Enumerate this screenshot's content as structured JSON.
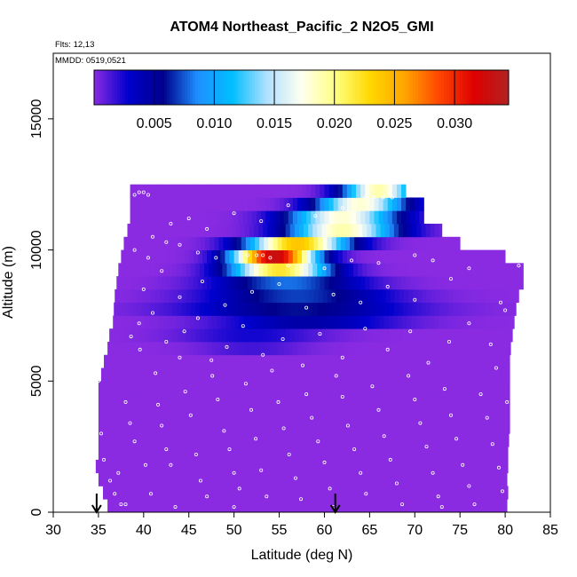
{
  "chart_data": {
    "type": "heatmap",
    "title": "ATOM4 Northeast_Pacific_2 N2O5_GMI",
    "flights_note": "Flts: 12,13",
    "dates_note": "MMDD: 0519,0521",
    "xlabel": "Latitude (deg N)",
    "ylabel": "Altitude (m)",
    "xlim": [
      30,
      85
    ],
    "ylim": [
      0,
      17500
    ],
    "x_ticks": [
      "30",
      "35",
      "40",
      "45",
      "50",
      "55",
      "60",
      "65",
      "70",
      "75",
      "80",
      "85"
    ],
    "y_ticks": [
      "0",
      "5000",
      "10000",
      "15000"
    ],
    "colorbar": {
      "range": [
        0,
        0.0345
      ],
      "ticks": [
        "0.005",
        "0.010",
        "0.015",
        "0.020",
        "0.025",
        "0.030"
      ],
      "colors": [
        "#8a2be2",
        "#0000cd",
        "#00008b",
        "#1e90ff",
        "#00bfff",
        "#b0e0ff",
        "#fffff0",
        "#ffff80",
        "#ffd700",
        "#ffa500",
        "#ff4500",
        "#dd0000",
        "#b22222"
      ]
    },
    "arrows_lat": [
      34.8,
      61.2
    ],
    "layers": [
      {
        "alt": 250,
        "lat": [
          36.0,
          80.2
        ],
        "peak": 0.0,
        "peak_lat": 0,
        "peak_w": 1
      },
      {
        "alt": 750,
        "lat": [
          35.5,
          80.3
        ],
        "peak": 0.0,
        "peak_lat": 0,
        "peak_w": 1
      },
      {
        "alt": 1250,
        "lat": [
          35.0,
          80.2
        ],
        "peak": 0.0,
        "peak_lat": 0,
        "peak_w": 1
      },
      {
        "alt": 1750,
        "lat": [
          34.7,
          80.3
        ],
        "peak": 0.0,
        "peak_lat": 0,
        "peak_w": 1
      },
      {
        "alt": 2250,
        "lat": [
          35.0,
          80.3
        ],
        "peak": 0.0,
        "peak_lat": 0,
        "peak_w": 1
      },
      {
        "alt": 2750,
        "lat": [
          35.0,
          80.4
        ],
        "peak": 0.0,
        "peak_lat": 0,
        "peak_w": 1
      },
      {
        "alt": 3250,
        "lat": [
          35.0,
          80.5
        ],
        "peak": 0.0,
        "peak_lat": 0,
        "peak_w": 1
      },
      {
        "alt": 3750,
        "lat": [
          35.0,
          80.5
        ],
        "peak": 0.0,
        "peak_lat": 0,
        "peak_w": 1
      },
      {
        "alt": 4250,
        "lat": [
          35.0,
          80.5
        ],
        "peak": 0.0,
        "peak_lat": 0,
        "peak_w": 1
      },
      {
        "alt": 4750,
        "lat": [
          35.0,
          80.5
        ],
        "peak": 0.0,
        "peak_lat": 0,
        "peak_w": 1
      },
      {
        "alt": 5250,
        "lat": [
          35.3,
          80.5
        ],
        "peak": 0.0,
        "peak_lat": 0,
        "peak_w": 1
      },
      {
        "alt": 5750,
        "lat": [
          35.6,
          80.5
        ],
        "peak": 0.0,
        "peak_lat": 0,
        "peak_w": 1
      },
      {
        "alt": 6250,
        "lat": [
          36.0,
          80.6
        ],
        "peak": 0.0015,
        "peak_lat": 52,
        "peak_w": 6
      },
      {
        "alt": 6750,
        "lat": [
          36.2,
          80.8
        ],
        "peak": 0.0025,
        "peak_lat": 52,
        "peak_w": 8
      },
      {
        "alt": 7250,
        "lat": [
          36.6,
          81.0
        ],
        "peak": 0.0045,
        "peak_lat": 58,
        "peak_w": 10
      },
      {
        "alt": 7750,
        "lat": [
          36.7,
          81.2
        ],
        "peak": 0.006,
        "peak_lat": 57,
        "peak_w": 12
      },
      {
        "alt": 8250,
        "lat": [
          36.8,
          81.5
        ],
        "peak": 0.007,
        "peak_lat": 57,
        "peak_w": 10
      },
      {
        "alt": 8750,
        "lat": [
          37.0,
          82.0
        ],
        "peak": 0.008,
        "peak_lat": 56,
        "peak_w": 8
      },
      {
        "alt": 9250,
        "lat": [
          37.2,
          82.0
        ],
        "peak": 0.022,
        "peak_lat": 55,
        "peak_w": 5.5
      },
      {
        "alt": 9750,
        "lat": [
          37.5,
          80.0
        ],
        "peak": 0.033,
        "peak_lat": 54.5,
        "peak_w": 4.5
      },
      {
        "alt": 10250,
        "lat": [
          37.8,
          75.0
        ],
        "peak": 0.024,
        "peak_lat": 57,
        "peak_w": 5.5
      },
      {
        "alt": 10750,
        "lat": [
          38.2,
          73.0
        ],
        "peak": 0.019,
        "peak_lat": 62,
        "peak_w": 6
      },
      {
        "alt": 11250,
        "lat": [
          38.5,
          71.0
        ],
        "peak": 0.018,
        "peak_lat": 62,
        "peak_w": 6
      },
      {
        "alt": 11750,
        "lat": [
          38.5,
          71.0
        ],
        "peak": 0.018,
        "peak_lat": 64,
        "peak_w": 5
      },
      {
        "alt": 12250,
        "lat": [
          38.5,
          69.0
        ],
        "peak": 0.019,
        "peak_lat": 66,
        "peak_w": 4
      }
    ],
    "points": [
      [
        35.0,
        5000
      ],
      [
        35.3,
        3000
      ],
      [
        35.6,
        2000
      ],
      [
        36.3,
        1200
      ],
      [
        36.8,
        700
      ],
      [
        37.2,
        1500
      ],
      [
        37.5,
        300
      ],
      [
        38.0,
        4200
      ],
      [
        38.5,
        3400
      ],
      [
        39.0,
        2700
      ],
      [
        39.6,
        6200
      ],
      [
        40.2,
        1800
      ],
      [
        40.8,
        700
      ],
      [
        41.3,
        5300
      ],
      [
        41.6,
        4100
      ],
      [
        42.0,
        3300
      ],
      [
        42.5,
        2400
      ],
      [
        43.0,
        1800
      ],
      [
        43.5,
        200
      ],
      [
        44.0,
        5900
      ],
      [
        44.6,
        4600
      ],
      [
        45.2,
        3700
      ],
      [
        45.8,
        2200
      ],
      [
        46.3,
        1200
      ],
      [
        47.0,
        600
      ],
      [
        47.6,
        5200
      ],
      [
        48.2,
        4300
      ],
      [
        48.9,
        3100
      ],
      [
        49.5,
        2400
      ],
      [
        50.0,
        1500
      ],
      [
        50.6,
        900
      ],
      [
        51.3,
        4900
      ],
      [
        51.9,
        3900
      ],
      [
        52.4,
        2800
      ],
      [
        53.0,
        1600
      ],
      [
        53.6,
        600
      ],
      [
        54.2,
        5400
      ],
      [
        54.9,
        4200
      ],
      [
        55.5,
        3200
      ],
      [
        56.1,
        2200
      ],
      [
        56.8,
        1300
      ],
      [
        57.4,
        500
      ],
      [
        58.0,
        4500
      ],
      [
        58.6,
        3600
      ],
      [
        59.3,
        2700
      ],
      [
        60.0,
        1900
      ],
      [
        60.6,
        900
      ],
      [
        61.3,
        5200
      ],
      [
        62.0,
        4400
      ],
      [
        62.6,
        3300
      ],
      [
        63.3,
        2400
      ],
      [
        64.0,
        1500
      ],
      [
        64.6,
        700
      ],
      [
        65.3,
        4800
      ],
      [
        66.0,
        3900
      ],
      [
        66.6,
        2900
      ],
      [
        67.3,
        2000
      ],
      [
        68.0,
        1100
      ],
      [
        68.6,
        300
      ],
      [
        69.3,
        5200
      ],
      [
        70.0,
        4300
      ],
      [
        70.6,
        3400
      ],
      [
        71.3,
        2500
      ],
      [
        72.0,
        1500
      ],
      [
        72.6,
        600
      ],
      [
        73.3,
        4700
      ],
      [
        74.0,
        3700
      ],
      [
        74.6,
        2800
      ],
      [
        75.3,
        1800
      ],
      [
        76.0,
        1000
      ],
      [
        76.6,
        300
      ],
      [
        77.3,
        4500
      ],
      [
        78.0,
        3600
      ],
      [
        78.6,
        2600
      ],
      [
        79.3,
        1700
      ],
      [
        79.7,
        800
      ],
      [
        73.0,
        200
      ],
      [
        61.0,
        200
      ],
      [
        50.0,
        200
      ],
      [
        38.0,
        300
      ],
      [
        38.6,
        6700
      ],
      [
        39.5,
        7200
      ],
      [
        41.0,
        7600
      ],
      [
        42.5,
        6500
      ],
      [
        44.5,
        6900
      ],
      [
        46.0,
        7400
      ],
      [
        47.5,
        5800
      ],
      [
        49.2,
        6300
      ],
      [
        51.0,
        7100
      ],
      [
        53.2,
        6000
      ],
      [
        55.4,
        6600
      ],
      [
        57.6,
        5600
      ],
      [
        59.5,
        6800
      ],
      [
        62.0,
        5900
      ],
      [
        64.5,
        7000
      ],
      [
        67.0,
        6200
      ],
      [
        69.5,
        6900
      ],
      [
        71.5,
        5700
      ],
      [
        73.8,
        6500
      ],
      [
        76.0,
        7200
      ],
      [
        78.4,
        6400
      ],
      [
        80.0,
        7700
      ],
      [
        79.0,
        5500
      ],
      [
        80.2,
        4200
      ],
      [
        40.0,
        8500
      ],
      [
        42.0,
        9200
      ],
      [
        44.0,
        8200
      ],
      [
        46.5,
        8800
      ],
      [
        49.0,
        7900
      ],
      [
        52.0,
        8400
      ],
      [
        55.0,
        8700
      ],
      [
        58.0,
        7800
      ],
      [
        61.0,
        8300
      ],
      [
        64.0,
        8000
      ],
      [
        67.0,
        8600
      ],
      [
        70.0,
        8100
      ],
      [
        74.0,
        8900
      ],
      [
        76.0,
        9300
      ],
      [
        79.5,
        8000
      ],
      [
        81.5,
        9400
      ],
      [
        39.0,
        10000
      ],
      [
        40.5,
        9700
      ],
      [
        42.5,
        10300
      ],
      [
        44.0,
        10200
      ],
      [
        46.0,
        9900
      ],
      [
        48.0,
        9700
      ],
      [
        51.5,
        9800
      ],
      [
        52.5,
        9800
      ],
      [
        53.2,
        9800
      ],
      [
        54.0,
        9700
      ],
      [
        56.0,
        9400
      ],
      [
        60.0,
        9300
      ],
      [
        63.0,
        9600
      ],
      [
        66.0,
        9500
      ],
      [
        70.0,
        9800
      ],
      [
        72.0,
        9600
      ],
      [
        41.0,
        10500
      ],
      [
        43.0,
        11000
      ],
      [
        45.0,
        11200
      ],
      [
        47.0,
        10800
      ],
      [
        50.0,
        11400
      ],
      [
        53.0,
        11100
      ],
      [
        56.0,
        11700
      ],
      [
        59.0,
        11300
      ],
      [
        62.0,
        11600
      ],
      [
        64.5,
        12000
      ],
      [
        65.5,
        12000
      ],
      [
        66.5,
        12000
      ],
      [
        67.5,
        12000
      ],
      [
        39.0,
        12100
      ],
      [
        39.5,
        12200
      ],
      [
        40.0,
        12200
      ],
      [
        40.5,
        12100
      ]
    ]
  }
}
